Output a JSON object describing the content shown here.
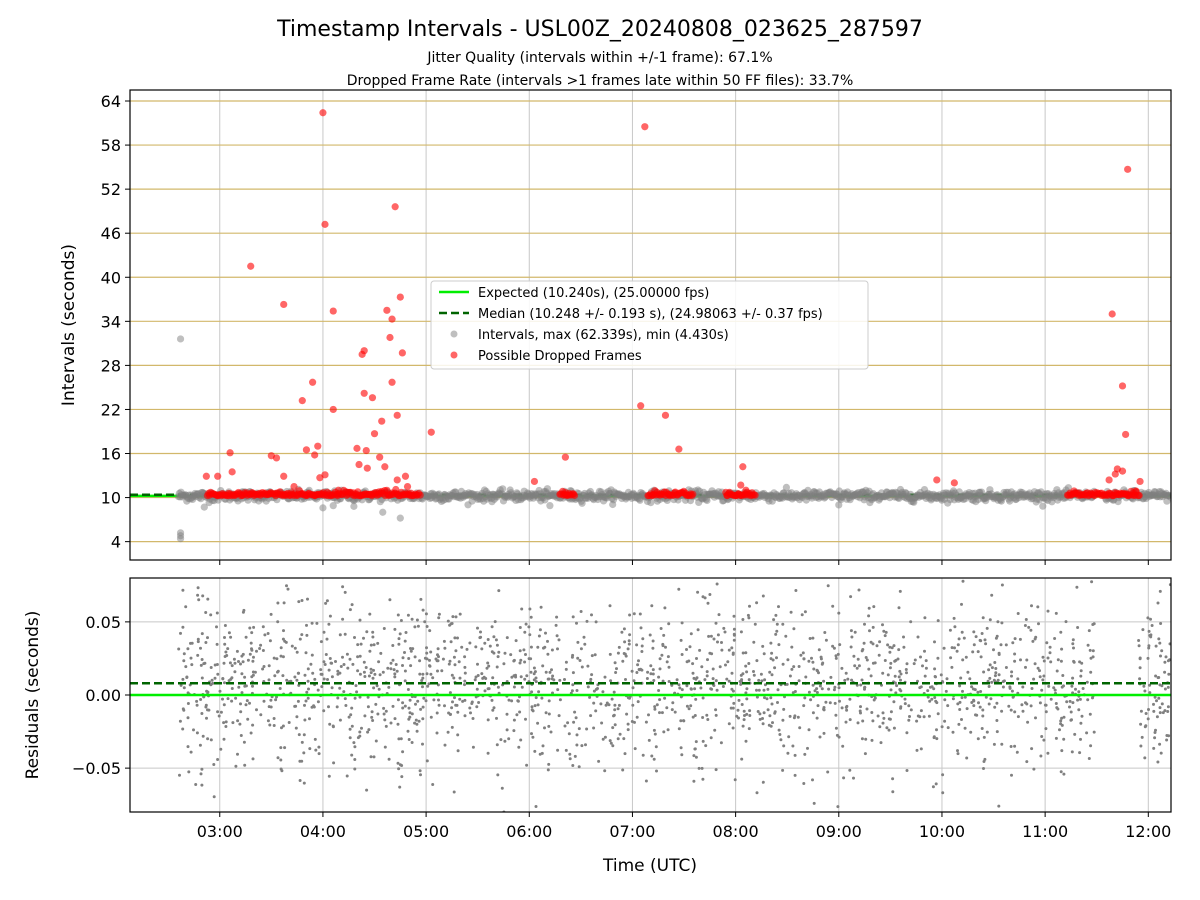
{
  "chart_data": [
    {
      "type": "scatter",
      "title": "Timestamp Intervals - USL00Z_20240808_023625_287597",
      "subtitle_lines": [
        "Jitter Quality (intervals within +/-1 frame): 67.1%",
        "Dropped Frame Rate (intervals >1 frames late within 50 FF files): 33.7%"
      ],
      "xlabel": "",
      "ylabel": "Intervals (seconds)",
      "y_ticks": [
        4,
        10,
        16,
        22,
        28,
        34,
        40,
        46,
        52,
        58,
        64
      ],
      "ylim": [
        1.5,
        65.5
      ],
      "grid": true,
      "legend_position": "center",
      "legend": [
        "Expected (10.240s), (25.00000 fps)",
        "Median (10.248 +/- 0.193 s), (24.98063 +/- 0.37 fps)",
        "Intervals, max (62.339s), min (4.430s)",
        "Possible Dropped Frames"
      ],
      "lines": {
        "expected": 10.24,
        "median": 10.248
      },
      "outliers_red": [
        [
          2.87,
          12.9
        ],
        [
          2.98,
          12.9
        ],
        [
          3.12,
          13.5
        ],
        [
          3.1,
          16.1
        ],
        [
          3.3,
          41.5
        ],
        [
          3.5,
          15.7
        ],
        [
          3.55,
          15.4
        ],
        [
          3.62,
          36.3
        ],
        [
          3.62,
          12.9
        ],
        [
          3.72,
          11.5
        ],
        [
          3.8,
          23.2
        ],
        [
          3.84,
          16.5
        ],
        [
          3.9,
          25.7
        ],
        [
          3.92,
          15.8
        ],
        [
          3.97,
          12.7
        ],
        [
          3.95,
          17.0
        ],
        [
          4.0,
          62.4
        ],
        [
          4.02,
          47.2
        ],
        [
          4.02,
          13.1
        ],
        [
          4.1,
          35.4
        ],
        [
          4.1,
          22.0
        ],
        [
          4.15,
          11.0
        ],
        [
          4.33,
          16.7
        ],
        [
          4.35,
          14.5
        ],
        [
          4.38,
          29.5
        ],
        [
          4.4,
          30.0
        ],
        [
          4.4,
          24.2
        ],
        [
          4.42,
          16.4
        ],
        [
          4.43,
          14.0
        ],
        [
          4.48,
          23.6
        ],
        [
          4.5,
          18.7
        ],
        [
          4.55,
          15.5
        ],
        [
          4.57,
          20.4
        ],
        [
          4.6,
          14.2
        ],
        [
          4.62,
          35.5
        ],
        [
          4.65,
          31.8
        ],
        [
          4.67,
          25.7
        ],
        [
          4.67,
          34.3
        ],
        [
          4.7,
          49.6
        ],
        [
          4.72,
          21.2
        ],
        [
          4.72,
          12.4
        ],
        [
          4.75,
          37.3
        ],
        [
          4.77,
          29.7
        ],
        [
          4.8,
          12.9
        ],
        [
          4.82,
          11.5
        ],
        [
          5.05,
          18.9
        ],
        [
          6.05,
          12.2
        ],
        [
          6.35,
          15.5
        ],
        [
          6.35,
          10.7
        ],
        [
          7.08,
          22.5
        ],
        [
          7.12,
          60.5
        ],
        [
          7.32,
          21.2
        ],
        [
          7.45,
          16.6
        ],
        [
          8.05,
          11.7
        ],
        [
          8.07,
          14.2
        ],
        [
          8.1,
          11.0
        ],
        [
          9.95,
          12.4
        ],
        [
          10.12,
          12.0
        ],
        [
          11.28,
          10.9
        ],
        [
          11.62,
          12.4
        ],
        [
          11.65,
          35.0
        ],
        [
          11.68,
          13.2
        ],
        [
          11.7,
          13.9
        ],
        [
          11.75,
          13.6
        ],
        [
          11.75,
          25.2
        ],
        [
          11.78,
          18.6
        ],
        [
          11.8,
          54.7
        ],
        [
          11.88,
          10.9
        ],
        [
          11.92,
          12.2
        ]
      ],
      "outliers_gray": [
        [
          2.62,
          31.6
        ],
        [
          2.62,
          5.2
        ],
        [
          2.62,
          4.8
        ],
        [
          2.62,
          4.4
        ],
        [
          2.85,
          8.7
        ],
        [
          4.0,
          8.6
        ],
        [
          4.1,
          8.9
        ],
        [
          4.3,
          8.8
        ],
        [
          4.58,
          8.0
        ],
        [
          4.75,
          7.2
        ],
        [
          6.2,
          8.9
        ],
        [
          9.0,
          9.0
        ]
      ],
      "bulk_interval_around": 10.24
    },
    {
      "type": "scatter",
      "xlabel": "Time (UTC)",
      "ylabel": "Residuals (seconds)",
      "x_ticks": [
        "03:00",
        "04:00",
        "05:00",
        "06:00",
        "07:00",
        "08:00",
        "09:00",
        "10:00",
        "11:00",
        "12:00"
      ],
      "xlim_hours": [
        2.13,
        12.22
      ],
      "y_ticks": [
        "0.05",
        "0.00",
        "−0.05"
      ],
      "y_tick_values": [
        0.05,
        0.0,
        -0.05
      ],
      "ylim": [
        -0.08,
        0.08
      ],
      "grid": true,
      "lines": {
        "expected": 0.0,
        "median": 0.008
      },
      "data_start_hour": 2.6,
      "data_end_hour": 12.22,
      "gap_hours": [
        11.48,
        11.9
      ]
    }
  ],
  "colors": {
    "expected": "#00ee00",
    "median": "#006400",
    "gray": "#808080",
    "red": "#ff0000",
    "hgrid_top": "#d2b86b",
    "grid": "#c8c8c8"
  }
}
